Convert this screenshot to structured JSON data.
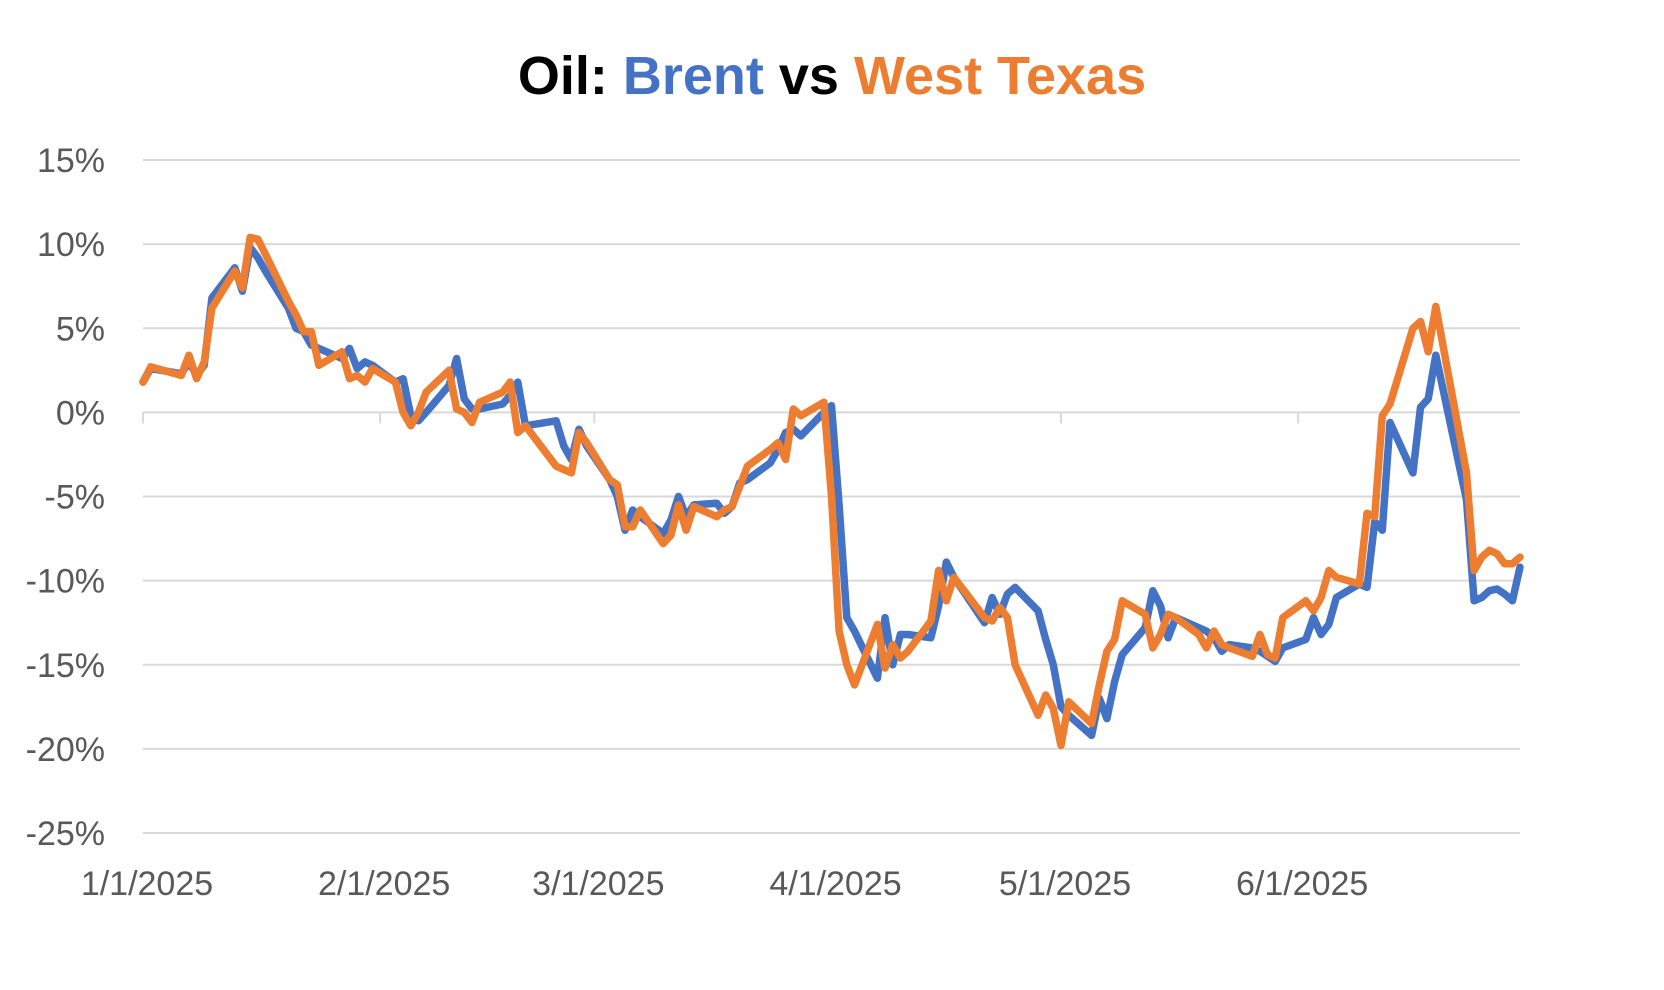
{
  "chart_data": {
    "type": "line",
    "title": {
      "prefix": "Oil: ",
      "part1": "Brent",
      "middle": " vs ",
      "part2": "West Texas"
    },
    "title_colors": {
      "prefix": "#000000",
      "part1": "#4472C4",
      "middle": "#000000",
      "part2": "#ED7D31"
    },
    "xlabel": "",
    "ylabel": "",
    "x_range": [
      "2025-01-01",
      "2025-06-30"
    ],
    "ylim": [
      -25,
      15
    ],
    "y_ticks": [
      15,
      10,
      5,
      0,
      -5,
      -10,
      -15,
      -20,
      -25
    ],
    "y_tick_labels": [
      "15%",
      "10%",
      "5%",
      "0%",
      "-5%",
      "-10%",
      "-15%",
      "-20%",
      "-25%"
    ],
    "x_ticks": [
      "2025-01-01",
      "2025-02-01",
      "2025-03-01",
      "2025-04-01",
      "2025-05-01",
      "2025-06-01"
    ],
    "x_tick_labels": [
      "1/1/2025",
      "2/1/2025",
      "3/1/2025",
      "4/1/2025",
      "5/1/2025",
      "6/1/2025"
    ],
    "grid": true,
    "legend": "none",
    "series": [
      {
        "color": "#4472C4",
        "points": [
          [
            "2025-01-01",
            1.8
          ],
          [
            "2025-01-02",
            2.6
          ],
          [
            "2025-01-06",
            2.3
          ],
          [
            "2025-01-07",
            3.0
          ],
          [
            "2025-01-08",
            2.2
          ],
          [
            "2025-01-09",
            2.8
          ],
          [
            "2025-01-10",
            6.8
          ],
          [
            "2025-01-13",
            8.6
          ],
          [
            "2025-01-14",
            7.2
          ],
          [
            "2025-01-15",
            9.8
          ],
          [
            "2025-01-16",
            9.2
          ],
          [
            "2025-01-17",
            8.4
          ],
          [
            "2025-01-20",
            6.2
          ],
          [
            "2025-01-21",
            5.0
          ],
          [
            "2025-01-22",
            4.8
          ],
          [
            "2025-01-23",
            4.0
          ],
          [
            "2025-01-24",
            3.8
          ],
          [
            "2025-01-27",
            3.2
          ],
          [
            "2025-01-28",
            3.8
          ],
          [
            "2025-01-29",
            2.6
          ],
          [
            "2025-01-30",
            3.0
          ],
          [
            "2025-01-31",
            2.8
          ],
          [
            "2025-02-03",
            1.8
          ],
          [
            "2025-02-04",
            2.0
          ],
          [
            "2025-02-05",
            -0.2
          ],
          [
            "2025-02-06",
            -0.5
          ],
          [
            "2025-02-07",
            0.0
          ],
          [
            "2025-02-10",
            1.6
          ],
          [
            "2025-02-11",
            3.2
          ],
          [
            "2025-02-12",
            0.8
          ],
          [
            "2025-02-13",
            0.2
          ],
          [
            "2025-02-14",
            0.2
          ],
          [
            "2025-02-17",
            0.5
          ],
          [
            "2025-02-18",
            1.0
          ],
          [
            "2025-02-19",
            1.8
          ],
          [
            "2025-02-20",
            -0.8
          ],
          [
            "2025-02-24",
            -0.5
          ],
          [
            "2025-02-25",
            -2.0
          ],
          [
            "2025-02-26",
            -2.8
          ],
          [
            "2025-02-27",
            -1.0
          ],
          [
            "2025-02-28",
            -2.0
          ],
          [
            "2025-03-03",
            -4.0
          ],
          [
            "2025-03-04",
            -5.0
          ],
          [
            "2025-03-05",
            -7.0
          ],
          [
            "2025-03-06",
            -5.8
          ],
          [
            "2025-03-07",
            -6.2
          ],
          [
            "2025-03-10",
            -7.2
          ],
          [
            "2025-03-11",
            -6.4
          ],
          [
            "2025-03-12",
            -5.0
          ],
          [
            "2025-03-13",
            -6.2
          ],
          [
            "2025-03-14",
            -5.5
          ],
          [
            "2025-03-17",
            -5.4
          ],
          [
            "2025-03-18",
            -6.0
          ],
          [
            "2025-03-19",
            -5.6
          ],
          [
            "2025-03-20",
            -4.2
          ],
          [
            "2025-03-21",
            -4.0
          ],
          [
            "2025-03-24",
            -3.0
          ],
          [
            "2025-03-25",
            -2.2
          ],
          [
            "2025-03-26",
            -1.2
          ],
          [
            "2025-03-27",
            -1.0
          ],
          [
            "2025-03-28",
            -1.4
          ],
          [
            "2025-03-31",
            0.0
          ],
          [
            "2025-04-01",
            0.4
          ],
          [
            "2025-04-02",
            -5.5
          ],
          [
            "2025-04-03",
            -12.2
          ],
          [
            "2025-04-04",
            -13.0
          ],
          [
            "2025-04-07",
            -15.8
          ],
          [
            "2025-04-08",
            -12.2
          ],
          [
            "2025-04-09",
            -15.0
          ],
          [
            "2025-04-10",
            -13.2
          ],
          [
            "2025-04-11",
            -13.2
          ],
          [
            "2025-04-14",
            -13.4
          ],
          [
            "2025-04-15",
            -11.5
          ],
          [
            "2025-04-16",
            -8.9
          ],
          [
            "2025-04-17",
            -9.8
          ],
          [
            "2025-04-21",
            -12.5
          ],
          [
            "2025-04-22",
            -11.0
          ],
          [
            "2025-04-23",
            -12.0
          ],
          [
            "2025-04-24",
            -10.8
          ],
          [
            "2025-04-25",
            -10.4
          ],
          [
            "2025-04-28",
            -11.8
          ],
          [
            "2025-04-29",
            -13.5
          ],
          [
            "2025-04-30",
            -15.0
          ],
          [
            "2025-05-01",
            -17.5
          ],
          [
            "2025-05-02",
            -18.0
          ],
          [
            "2025-05-05",
            -19.2
          ],
          [
            "2025-05-06",
            -17.0
          ],
          [
            "2025-05-07",
            -18.2
          ],
          [
            "2025-05-08",
            -16.0
          ],
          [
            "2025-05-09",
            -14.4
          ],
          [
            "2025-05-12",
            -12.8
          ],
          [
            "2025-05-13",
            -10.6
          ],
          [
            "2025-05-14",
            -11.5
          ],
          [
            "2025-05-15",
            -13.4
          ],
          [
            "2025-05-16",
            -12.2
          ],
          [
            "2025-05-19",
            -12.8
          ],
          [
            "2025-05-20",
            -13.0
          ],
          [
            "2025-05-21",
            -13.4
          ],
          [
            "2025-05-22",
            -14.2
          ],
          [
            "2025-05-23",
            -13.8
          ],
          [
            "2025-05-26",
            -14.0
          ],
          [
            "2025-05-27",
            -14.2
          ],
          [
            "2025-05-28",
            -14.5
          ],
          [
            "2025-05-29",
            -14.8
          ],
          [
            "2025-05-30",
            -14.0
          ],
          [
            "2025-06-02",
            -13.5
          ],
          [
            "2025-06-03",
            -12.2
          ],
          [
            "2025-06-04",
            -13.2
          ],
          [
            "2025-06-05",
            -12.6
          ],
          [
            "2025-06-06",
            -11.0
          ],
          [
            "2025-06-09",
            -10.2
          ],
          [
            "2025-06-10",
            -10.4
          ],
          [
            "2025-06-11",
            -6.5
          ],
          [
            "2025-06-12",
            -7.0
          ],
          [
            "2025-06-13",
            -0.6
          ],
          [
            "2025-06-16",
            -3.6
          ],
          [
            "2025-06-17",
            0.3
          ],
          [
            "2025-06-18",
            0.8
          ],
          [
            "2025-06-19",
            3.4
          ],
          [
            "2025-06-23",
            -5.2
          ],
          [
            "2025-06-24",
            -11.2
          ],
          [
            "2025-06-25",
            -11.0
          ],
          [
            "2025-06-26",
            -10.6
          ],
          [
            "2025-06-27",
            -10.5
          ],
          [
            "2025-06-28",
            -10.8
          ],
          [
            "2025-06-29",
            -11.2
          ],
          [
            "2025-06-30",
            -9.2
          ]
        ]
      },
      {
        "color": "#ED7D31",
        "points": [
          [
            "2025-01-01",
            1.8
          ],
          [
            "2025-01-02",
            2.7
          ],
          [
            "2025-01-06",
            2.2
          ],
          [
            "2025-01-07",
            3.4
          ],
          [
            "2025-01-08",
            2.0
          ],
          [
            "2025-01-09",
            3.0
          ],
          [
            "2025-01-10",
            6.2
          ],
          [
            "2025-01-13",
            8.4
          ],
          [
            "2025-01-14",
            7.4
          ],
          [
            "2025-01-15",
            10.4
          ],
          [
            "2025-01-16",
            10.3
          ],
          [
            "2025-01-17",
            9.4
          ],
          [
            "2025-01-20",
            6.6
          ],
          [
            "2025-01-21",
            5.8
          ],
          [
            "2025-01-22",
            4.8
          ],
          [
            "2025-01-23",
            4.8
          ],
          [
            "2025-01-24",
            2.8
          ],
          [
            "2025-01-27",
            3.6
          ],
          [
            "2025-01-28",
            2.0
          ],
          [
            "2025-01-29",
            2.2
          ],
          [
            "2025-01-30",
            1.8
          ],
          [
            "2025-01-31",
            2.6
          ],
          [
            "2025-02-03",
            1.8
          ],
          [
            "2025-02-04",
            0.0
          ],
          [
            "2025-02-05",
            -0.8
          ],
          [
            "2025-02-06",
            0.0
          ],
          [
            "2025-02-07",
            1.2
          ],
          [
            "2025-02-10",
            2.5
          ],
          [
            "2025-02-11",
            0.2
          ],
          [
            "2025-02-12",
            0.0
          ],
          [
            "2025-02-13",
            -0.6
          ],
          [
            "2025-02-14",
            0.6
          ],
          [
            "2025-02-17",
            1.2
          ],
          [
            "2025-02-18",
            1.8
          ],
          [
            "2025-02-19",
            -1.2
          ],
          [
            "2025-02-20",
            -0.8
          ],
          [
            "2025-02-24",
            -3.2
          ],
          [
            "2025-02-25",
            -3.4
          ],
          [
            "2025-02-26",
            -3.6
          ],
          [
            "2025-02-27",
            -1.2
          ],
          [
            "2025-02-28",
            -1.8
          ],
          [
            "2025-03-03",
            -4.0
          ],
          [
            "2025-03-04",
            -4.3
          ],
          [
            "2025-03-05",
            -6.8
          ],
          [
            "2025-03-06",
            -6.8
          ],
          [
            "2025-03-07",
            -5.8
          ],
          [
            "2025-03-10",
            -7.8
          ],
          [
            "2025-03-11",
            -7.3
          ],
          [
            "2025-03-12",
            -5.5
          ],
          [
            "2025-03-13",
            -7.0
          ],
          [
            "2025-03-14",
            -5.6
          ],
          [
            "2025-03-17",
            -6.2
          ],
          [
            "2025-03-18",
            -5.8
          ],
          [
            "2025-03-19",
            -5.6
          ],
          [
            "2025-03-20",
            -4.4
          ],
          [
            "2025-03-21",
            -3.2
          ],
          [
            "2025-03-24",
            -2.2
          ],
          [
            "2025-03-25",
            -1.8
          ],
          [
            "2025-03-26",
            -2.8
          ],
          [
            "2025-03-27",
            0.2
          ],
          [
            "2025-03-28",
            -0.2
          ],
          [
            "2025-03-31",
            0.6
          ],
          [
            "2025-04-01",
            -5.0
          ],
          [
            "2025-04-02",
            -13.0
          ],
          [
            "2025-04-03",
            -15.0
          ],
          [
            "2025-04-04",
            -16.2
          ],
          [
            "2025-04-07",
            -12.6
          ],
          [
            "2025-04-08",
            -15.2
          ],
          [
            "2025-04-09",
            -13.8
          ],
          [
            "2025-04-10",
            -14.6
          ],
          [
            "2025-04-11",
            -14.2
          ],
          [
            "2025-04-14",
            -12.4
          ],
          [
            "2025-04-15",
            -9.4
          ],
          [
            "2025-04-16",
            -11.2
          ],
          [
            "2025-04-17",
            -9.8
          ],
          [
            "2025-04-21",
            -12.2
          ],
          [
            "2025-04-22",
            -12.4
          ],
          [
            "2025-04-23",
            -11.6
          ],
          [
            "2025-04-24",
            -12.2
          ],
          [
            "2025-04-25",
            -15.0
          ],
          [
            "2025-04-28",
            -18.0
          ],
          [
            "2025-04-29",
            -16.8
          ],
          [
            "2025-04-30",
            -17.6
          ],
          [
            "2025-05-01",
            -19.8
          ],
          [
            "2025-05-02",
            -17.2
          ],
          [
            "2025-05-05",
            -18.5
          ],
          [
            "2025-05-06",
            -16.2
          ],
          [
            "2025-05-07",
            -14.2
          ],
          [
            "2025-05-08",
            -13.5
          ],
          [
            "2025-05-09",
            -11.2
          ],
          [
            "2025-05-12",
            -12.0
          ],
          [
            "2025-05-13",
            -14.0
          ],
          [
            "2025-05-14",
            -13.2
          ],
          [
            "2025-05-15",
            -12.0
          ],
          [
            "2025-05-16",
            -12.2
          ],
          [
            "2025-05-19",
            -13.2
          ],
          [
            "2025-05-20",
            -14.0
          ],
          [
            "2025-05-21",
            -13.0
          ],
          [
            "2025-05-22",
            -13.8
          ],
          [
            "2025-05-23",
            -14.0
          ],
          [
            "2025-05-26",
            -14.5
          ],
          [
            "2025-05-27",
            -13.2
          ],
          [
            "2025-05-28",
            -14.4
          ],
          [
            "2025-05-29",
            -14.6
          ],
          [
            "2025-05-30",
            -12.2
          ],
          [
            "2025-06-02",
            -11.2
          ],
          [
            "2025-06-03",
            -11.8
          ],
          [
            "2025-06-04",
            -11.0
          ],
          [
            "2025-06-05",
            -9.4
          ],
          [
            "2025-06-06",
            -9.8
          ],
          [
            "2025-06-09",
            -10.2
          ],
          [
            "2025-06-10",
            -6.0
          ],
          [
            "2025-06-11",
            -6.2
          ],
          [
            "2025-06-12",
            -0.2
          ],
          [
            "2025-06-13",
            0.5
          ],
          [
            "2025-06-16",
            5.0
          ],
          [
            "2025-06-17",
            5.4
          ],
          [
            "2025-06-18",
            3.6
          ],
          [
            "2025-06-19",
            6.3
          ],
          [
            "2025-06-23",
            -3.6
          ],
          [
            "2025-06-24",
            -9.4
          ],
          [
            "2025-06-25",
            -8.6
          ],
          [
            "2025-06-26",
            -8.2
          ],
          [
            "2025-06-27",
            -8.4
          ],
          [
            "2025-06-28",
            -9.0
          ],
          [
            "2025-06-29",
            -9.0
          ],
          [
            "2025-06-30",
            -8.6
          ]
        ]
      }
    ]
  }
}
